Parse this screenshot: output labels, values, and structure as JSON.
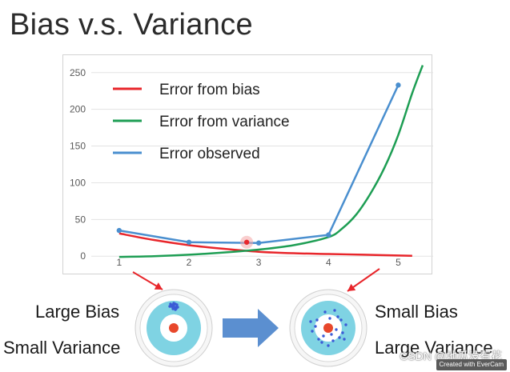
{
  "slide": {
    "title": "Bias v.s. Variance"
  },
  "chart_data": {
    "type": "line",
    "x": [
      1,
      2,
      3,
      4,
      5
    ],
    "xticks": [
      "1",
      "2",
      "3",
      "4",
      "5"
    ],
    "yticks": [
      "0",
      "50",
      "100",
      "150",
      "200",
      "250"
    ],
    "ylim": [
      -15,
      265
    ],
    "xlim": [
      0.6,
      5.5
    ],
    "grid": true,
    "legend_placement": "top-left",
    "highlighted_point": {
      "x": 3,
      "y": 19
    },
    "series": [
      {
        "name": "Error from bias",
        "color": "#e8262b",
        "x": [
          1,
          1.5,
          2,
          2.5,
          3,
          3.5,
          4,
          4.5,
          5,
          5.2
        ],
        "values": [
          31,
          22,
          15,
          10,
          6,
          4,
          3,
          2,
          1,
          0.5
        ]
      },
      {
        "name": "Error from variance",
        "color": "#1e9e54",
        "x": [
          1,
          1.5,
          2,
          2.5,
          3,
          3.5,
          4,
          4.2,
          4.4,
          4.6,
          4.8,
          5,
          5.2,
          5.35
        ],
        "values": [
          -1,
          0,
          2,
          5,
          9,
          15,
          26,
          38,
          57,
          85,
          120,
          165,
          222,
          260
        ]
      },
      {
        "name": "Error observed",
        "color": "#4a8fcf",
        "x": [
          1,
          2,
          3,
          4,
          5
        ],
        "values": [
          35,
          19,
          18,
          29,
          233
        ]
      }
    ]
  },
  "bottom": {
    "left_top": "Large Bias",
    "left_bottom": "Small Variance",
    "right_top": "Small Bias",
    "right_bottom": "Large Variance",
    "colors": {
      "ring": "#7fd3e3",
      "center": "#e8472b",
      "dot": "#3b5bd6",
      "arrow": "#5b8fd0",
      "pointer": "#e8262b"
    }
  },
  "watermark": {
    "text": "CSDN @地瓜没有花",
    "badge": "Created with EverCam"
  }
}
